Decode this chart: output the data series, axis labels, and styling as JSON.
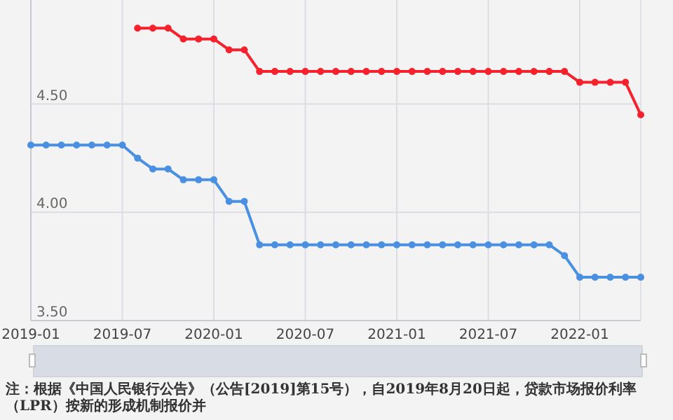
{
  "chart_data": {
    "type": "line",
    "x": [
      "2019-01",
      "2019-02",
      "2019-03",
      "2019-04",
      "2019-05",
      "2019-06",
      "2019-07",
      "2019-08",
      "2019-09",
      "2019-10",
      "2019-11",
      "2019-12",
      "2020-01",
      "2020-02",
      "2020-03",
      "2020-04",
      "2020-05",
      "2020-06",
      "2020-07",
      "2020-08",
      "2020-09",
      "2020-10",
      "2020-11",
      "2020-12",
      "2021-01",
      "2021-02",
      "2021-03",
      "2021-04",
      "2021-05",
      "2021-06",
      "2021-07",
      "2021-08",
      "2021-09",
      "2021-10",
      "2021-11",
      "2021-12",
      "2022-01",
      "2022-02",
      "2022-03",
      "2022-04",
      "2022-05"
    ],
    "series": [
      {
        "color": "#4a90e2",
        "values": [
          4.31,
          4.31,
          4.31,
          4.31,
          4.31,
          4.31,
          4.31,
          4.25,
          4.2,
          4.2,
          4.15,
          4.15,
          4.15,
          4.05,
          4.05,
          3.85,
          3.85,
          3.85,
          3.85,
          3.85,
          3.85,
          3.85,
          3.85,
          3.85,
          3.85,
          3.85,
          3.85,
          3.85,
          3.85,
          3.85,
          3.85,
          3.85,
          3.85,
          3.85,
          3.85,
          3.8,
          3.7,
          3.7,
          3.7,
          3.7,
          3.7
        ]
      },
      {
        "color": "#f5222d",
        "values": [
          null,
          null,
          null,
          null,
          null,
          null,
          null,
          4.85,
          4.85,
          4.85,
          4.8,
          4.8,
          4.8,
          4.75,
          4.75,
          4.65,
          4.65,
          4.65,
          4.65,
          4.65,
          4.65,
          4.65,
          4.65,
          4.65,
          4.65,
          4.65,
          4.65,
          4.65,
          4.65,
          4.65,
          4.65,
          4.65,
          4.65,
          4.65,
          4.65,
          4.65,
          4.6,
          4.6,
          4.6,
          4.6,
          4.45
        ]
      }
    ],
    "xlim": [
      "2019-01",
      "2022-05"
    ],
    "xticks": [
      "2019-01",
      "2019-07",
      "2020-01",
      "2020-07",
      "2021-01",
      "2021-07",
      "2022-01"
    ],
    "ylim": [
      3.5,
      4.98
    ],
    "yticks": [
      {
        "value": 3.5,
        "label": "3.50"
      },
      {
        "value": 4.0,
        "label": "4.00"
      },
      {
        "value": 4.5,
        "label": "4.50"
      }
    ],
    "grid": true,
    "marker": "circle",
    "annotations": [
      "注：根据《中国人民银行公告》（公告[2019]第15号），自2019年8月20日起，贷款市场报价利率（LPR）按新的形成机制报价并"
    ]
  }
}
